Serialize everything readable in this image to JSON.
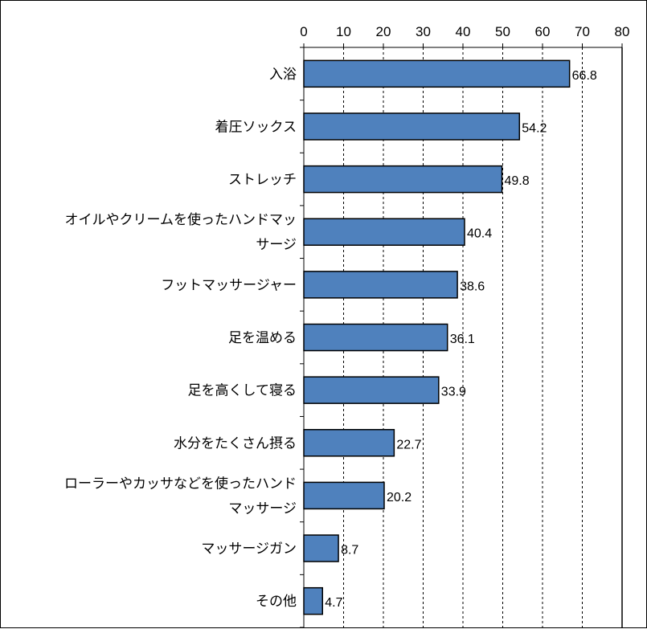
{
  "chart_data": {
    "type": "bar",
    "orientation": "horizontal",
    "categories": [
      [
        "入浴"
      ],
      [
        "着圧ソックス"
      ],
      [
        "ストレッチ"
      ],
      [
        "オイルやクリームを使ったハンドマッ",
        "サージ"
      ],
      [
        "フットマッサージャー"
      ],
      [
        "足を温める"
      ],
      [
        "足を高くして寝る"
      ],
      [
        "水分をたくさん摂る"
      ],
      [
        "ローラーやカッサなどを使ったハンド",
        "マッサージ"
      ],
      [
        "マッサージガン"
      ],
      [
        "その他"
      ]
    ],
    "values": [
      66.8,
      54.2,
      49.8,
      40.4,
      38.6,
      36.1,
      33.9,
      22.7,
      20.2,
      8.7,
      4.7
    ],
    "value_labels": [
      "66.8",
      "54.2",
      "49.8",
      "40.4",
      "38.6",
      "36.1",
      "33.9",
      "22.7",
      "20.2",
      "8.7",
      "4.7"
    ],
    "xlim": [
      0,
      80
    ],
    "x_ticks": [
      0,
      10,
      20,
      30,
      40,
      50,
      60,
      70,
      80
    ],
    "x_axis_position": "top",
    "grid": "vertical-dashed",
    "legend": "none",
    "colors": {
      "bar_fill": "#4f81bd",
      "bar_stroke": "#000000",
      "grid": "#000000"
    }
  }
}
